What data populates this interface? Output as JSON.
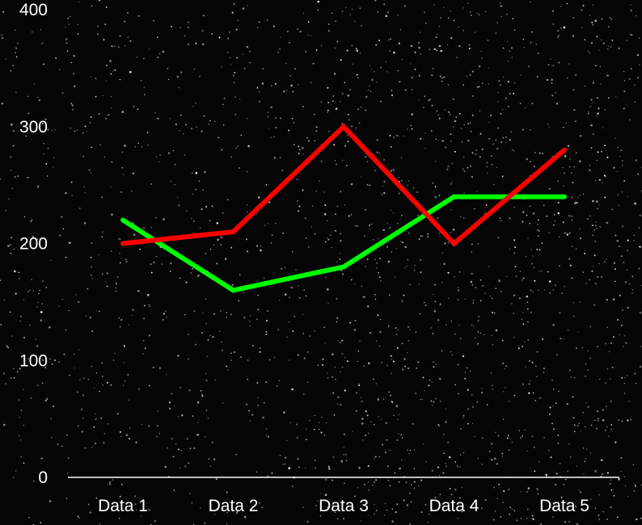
{
  "chart_data": {
    "type": "line",
    "categories": [
      "Data 1",
      "Data 2",
      "Data 3",
      "Data 4",
      "Data 5"
    ],
    "series": [
      {
        "values": [
          200,
          210,
          300,
          200,
          280
        ],
        "color": "#ff0000"
      },
      {
        "values": [
          220,
          160,
          180,
          240,
          240
        ],
        "color": "#00ff00"
      }
    ],
    "ylim": [
      0,
      400
    ],
    "yticks": [
      "0",
      "100",
      "200",
      "300",
      "400"
    ],
    "grid": false,
    "background": "starfield",
    "axis_color": "#ffffff"
  }
}
